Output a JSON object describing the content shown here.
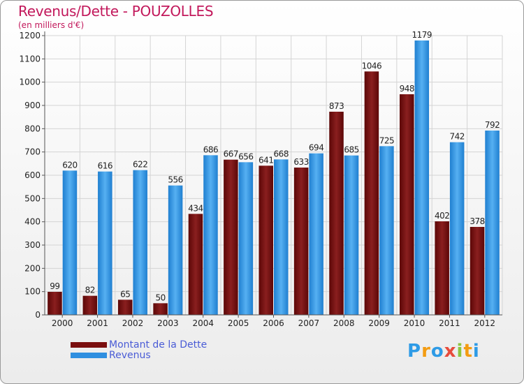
{
  "title": "Revenus/Dette - POUZOLLES",
  "subtitle": "(en milliers d'€)",
  "colors": {
    "debt": "#7a0e0e",
    "revenue": "#2f8fe0",
    "title": "#c2185b",
    "legend_text": "#4a5cd6"
  },
  "legend": [
    {
      "label": "Montant de la Dette",
      "series": "debt"
    },
    {
      "label": "Revenus",
      "series": "revenue"
    }
  ],
  "logo": {
    "letters": [
      "P",
      "r",
      "o",
      "x",
      "i",
      "t",
      "i"
    ],
    "colors": [
      "#2e9be6",
      "#f39c12",
      "#2e9be6",
      "#e74c3c",
      "#8cc63f",
      "#f39c12",
      "#2e9be6"
    ]
  },
  "chart_data": {
    "type": "bar",
    "categories": [
      "2000",
      "2001",
      "2002",
      "2003",
      "2004",
      "2005",
      "2006",
      "2007",
      "2008",
      "2009",
      "2010",
      "2011",
      "2012"
    ],
    "series": [
      {
        "name": "Montant de la Dette",
        "key": "debt",
        "values": [
          99,
          82,
          65,
          50,
          434,
          667,
          641,
          633,
          873,
          1046,
          948,
          402,
          378
        ]
      },
      {
        "name": "Revenus",
        "key": "revenue",
        "values": [
          620,
          616,
          622,
          556,
          686,
          656,
          668,
          694,
          685,
          725,
          1179,
          742,
          792
        ]
      }
    ],
    "ylim": [
      0,
      1200
    ],
    "yticks": [
      0,
      100,
      200,
      300,
      400,
      500,
      600,
      700,
      800,
      900,
      1000,
      1100,
      1200
    ],
    "grid": true,
    "legend_position": "bottom-left"
  }
}
